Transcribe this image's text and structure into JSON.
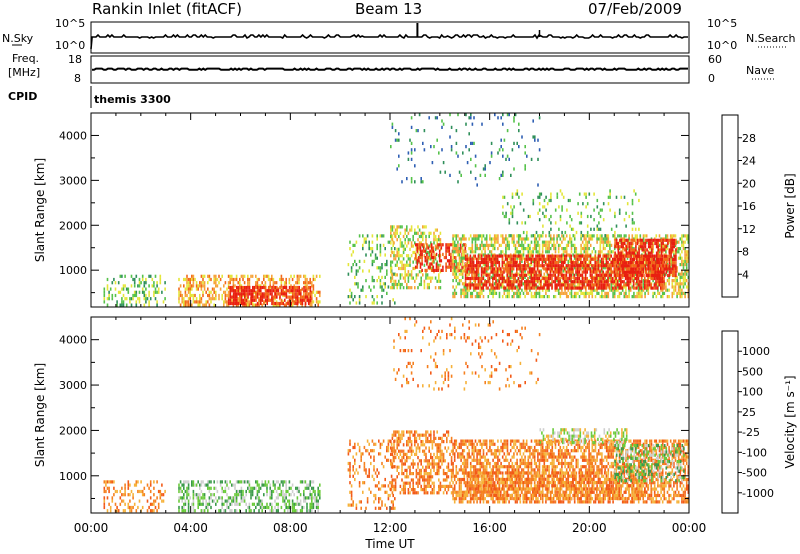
{
  "header": {
    "station": "Rankin Inlet (fitACF)",
    "beam": "Beam 13",
    "date": "07/Feb/2009"
  },
  "strip_labels": {
    "nsky": "N.Sky",
    "nsearch": "N.Search",
    "freq_line1": "Freq.",
    "freq_line2": "[MHz]",
    "nave": "Nave",
    "cpid": "CPID",
    "cpid_value": "themis 3300"
  },
  "colors": {
    "trace": "#000000",
    "axis": "#000000",
    "label": "#000000"
  },
  "chart_data": [
    {
      "type": "line",
      "name": "noise-strip",
      "left_axis": {
        "label": "N.Sky",
        "ticks": [
          "10^5",
          "10^0"
        ]
      },
      "right_axis": {
        "label": "N.Search",
        "ticks": [
          "10^5",
          "10^0"
        ]
      },
      "x_range_hours": [
        0,
        24
      ]
    },
    {
      "type": "line",
      "name": "freq-nave-strip",
      "left_axis": {
        "label": "Freq. [MHz]",
        "ticks": [
          18,
          8
        ]
      },
      "right_axis": {
        "label": "Nave",
        "ticks": [
          60,
          0
        ]
      },
      "freq_mhz_approx": 11,
      "x_range_hours": [
        0,
        24
      ]
    },
    {
      "type": "heatmap",
      "name": "power",
      "ylabel": "Slant Range [km]",
      "yticks": [
        1000,
        2000,
        3000,
        4000
      ],
      "ylim": [
        180,
        4500
      ],
      "colorbar": {
        "label": "Power [dB]",
        "ticks": [
          4,
          8,
          12,
          16,
          20,
          24,
          28
        ],
        "colors": [
          "#1e1ee6",
          "#2f5fb4",
          "#2f8f5a",
          "#55c24a",
          "#e4e63a",
          "#f6a43a",
          "#f26a1a",
          "#e91e10"
        ]
      },
      "regions": [
        {
          "t": [
            0.5,
            3.0
          ],
          "r": [
            250,
            900
          ],
          "level": 3,
          "density": 0.3
        },
        {
          "t": [
            3.5,
            9.2
          ],
          "r": [
            200,
            900
          ],
          "level": 5,
          "density": 0.5
        },
        {
          "t": [
            5.5,
            8.8
          ],
          "r": [
            250,
            650
          ],
          "level": 7,
          "density": 0.7
        },
        {
          "t": [
            10.3,
            12.2
          ],
          "r": [
            250,
            1800
          ],
          "level": 3,
          "density": 0.2
        },
        {
          "t": [
            12.0,
            14.0
          ],
          "r": [
            600,
            2000
          ],
          "level": 4,
          "density": 0.45
        },
        {
          "t": [
            13.0,
            15.0
          ],
          "r": [
            1000,
            1600
          ],
          "level": 7,
          "density": 0.55
        },
        {
          "t": [
            14.5,
            24.0
          ],
          "r": [
            400,
            1800
          ],
          "level": 4,
          "density": 0.55
        },
        {
          "t": [
            15.0,
            23.0
          ],
          "r": [
            600,
            1350
          ],
          "level": 7,
          "density": 0.75
        },
        {
          "t": [
            21.0,
            23.5
          ],
          "r": [
            900,
            1700
          ],
          "level": 7,
          "density": 0.7
        },
        {
          "t": [
            16.5,
            22.0
          ],
          "r": [
            1800,
            2800
          ],
          "level": 3,
          "density": 0.12
        },
        {
          "t": [
            12.0,
            18.0
          ],
          "r": [
            2900,
            4500
          ],
          "level": 2,
          "density": 0.07
        }
      ]
    },
    {
      "type": "heatmap",
      "name": "velocity",
      "xlabel": "Time UT",
      "xticks": [
        "00:00",
        "04:00",
        "08:00",
        "12:00",
        "16:00",
        "20:00",
        "00:00"
      ],
      "ylabel": "Slant Range [km]",
      "yticks": [
        1000,
        2000,
        3000,
        4000
      ],
      "ylim": [
        180,
        4500
      ],
      "colorbar": {
        "label": "Velocity [m s⁻¹]",
        "ticks": [
          1000,
          500,
          100,
          25,
          -25,
          -100,
          -500,
          -1000
        ],
        "colors": [
          "#2a4fb4",
          "#2e7a7c",
          "#3a9a4a",
          "#6acb3a",
          "#cfcfcf",
          "#f6b23a",
          "#f58020",
          "#f25a18",
          "#e91e10"
        ]
      },
      "regions": [
        {
          "t": [
            0.5,
            3.0
          ],
          "r": [
            250,
            900
          ],
          "level": 6,
          "density": 0.28
        },
        {
          "t": [
            3.5,
            9.2
          ],
          "r": [
            200,
            900
          ],
          "level": 3,
          "density": 0.5
        },
        {
          "t": [
            10.3,
            12.2
          ],
          "r": [
            250,
            1800
          ],
          "level": 6,
          "density": 0.22
        },
        {
          "t": [
            12.0,
            14.5
          ],
          "r": [
            600,
            2000
          ],
          "level": 6,
          "density": 0.5
        },
        {
          "t": [
            14.5,
            24.0
          ],
          "r": [
            400,
            1800
          ],
          "level": 6,
          "density": 0.62
        },
        {
          "t": [
            15.0,
            22.5
          ],
          "r": [
            500,
            1100
          ],
          "level": 6,
          "density": 0.55
        },
        {
          "t": [
            18.0,
            21.5
          ],
          "r": [
            1750,
            2050
          ],
          "level": 4,
          "density": 0.45
        },
        {
          "t": [
            21.0,
            23.8
          ],
          "r": [
            900,
            1700
          ],
          "level": 3,
          "density": 0.45
        },
        {
          "t": [
            12.0,
            18.0
          ],
          "r": [
            2900,
            4500
          ],
          "level": 6,
          "density": 0.07
        }
      ]
    }
  ]
}
